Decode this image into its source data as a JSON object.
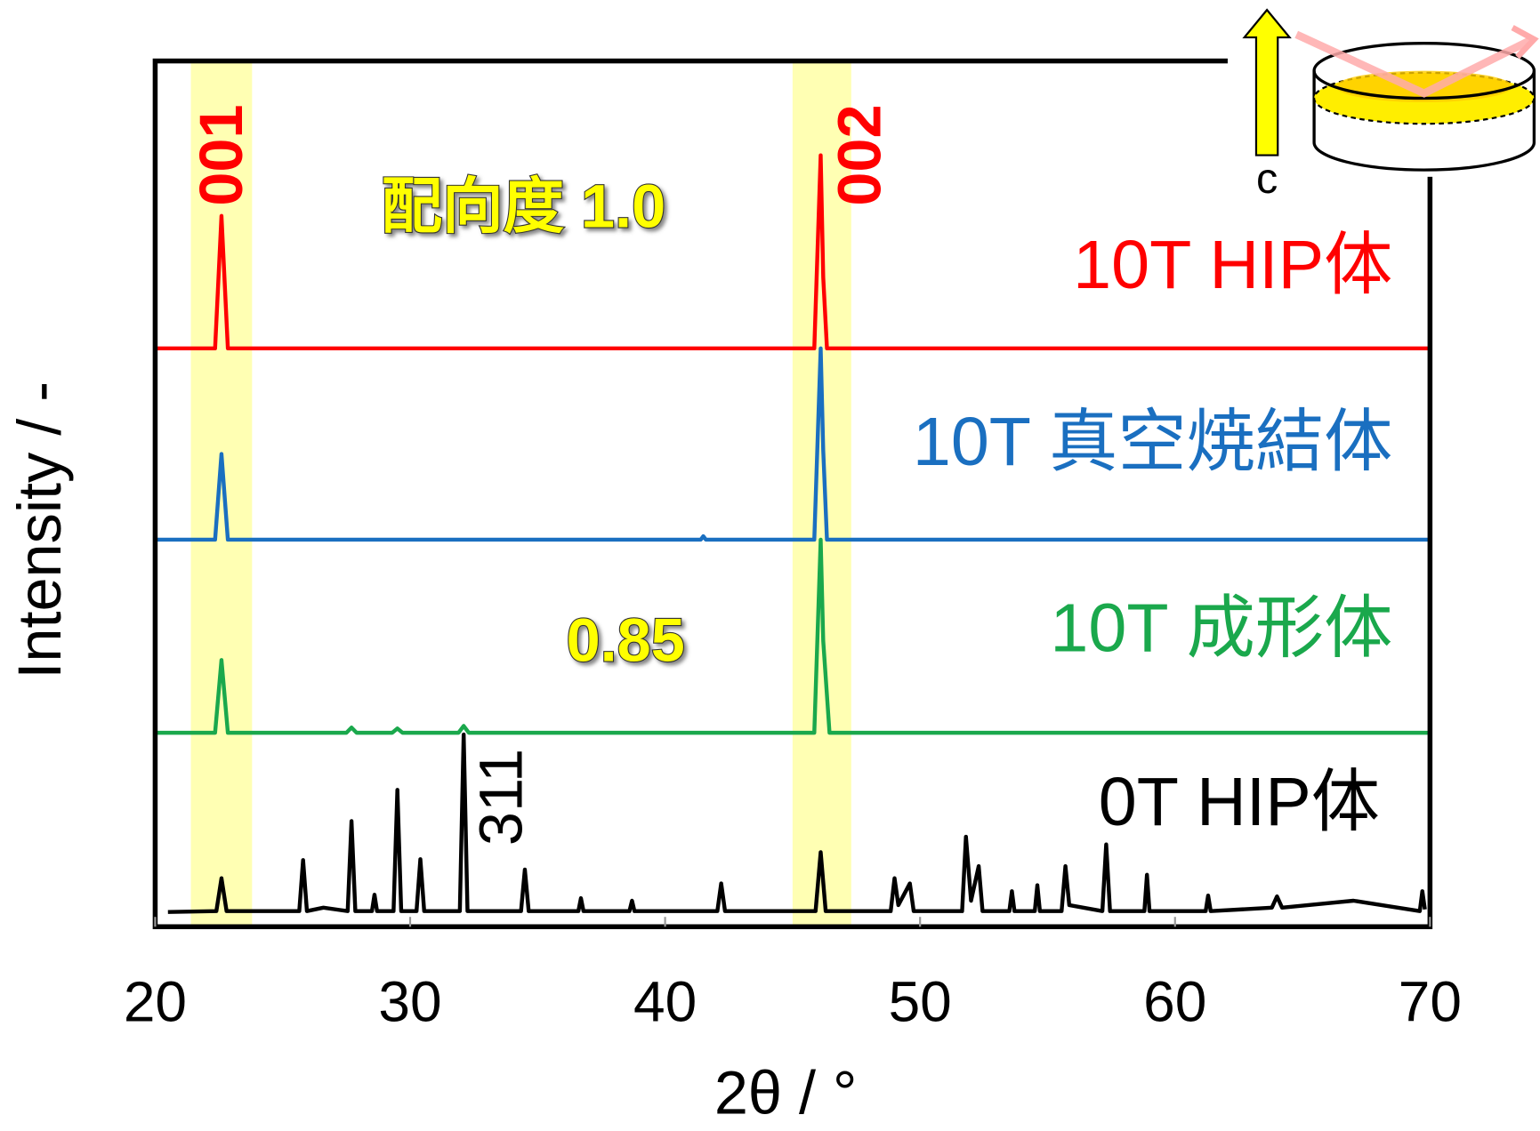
{
  "chart_data": {
    "type": "line",
    "xlabel": "2θ / °",
    "ylabel": "Intensity / -",
    "xlim": [
      20,
      70
    ],
    "xticks": [
      20,
      30,
      40,
      50,
      60,
      70
    ],
    "ylim": [
      0,
      100
    ],
    "highlight_color": "#ffff99",
    "highlight_ranges": [
      [
        21.4,
        23.8
      ],
      [
        45.0,
        47.3
      ]
    ],
    "peak_labels": [
      "001",
      "002",
      "311"
    ],
    "orientation_labels": [
      "配向度 1.0",
      "0.85"
    ],
    "inset_label": "c",
    "series": [
      {
        "name": "10T HIP体",
        "color": "#ff0000",
        "x": [
          20,
          22.35,
          22.6,
          22.85,
          45.85,
          46.1,
          46.2,
          46.35,
          70
        ],
        "values": [
          66.8,
          66.8,
          82.1,
          66.8,
          66.8,
          89.1,
          75,
          66.8,
          66.8
        ]
      },
      {
        "name": "10T 真空焼結体",
        "color": "#1a6fc0",
        "x": [
          20,
          22.35,
          22.6,
          22.85,
          41.4,
          41.5,
          41.6,
          45.85,
          46.1,
          46.2,
          46.35,
          70
        ],
        "values": [
          44.7,
          44.7,
          54.6,
          44.7,
          44.7,
          45.1,
          44.7,
          44.7,
          66.8,
          55,
          44.7,
          44.7
        ]
      },
      {
        "name": "10T 成形体",
        "color": "#1aa84c",
        "x": [
          20,
          22.35,
          22.6,
          22.85,
          27.5,
          27.7,
          27.9,
          29.3,
          29.5,
          29.7,
          31.9,
          32.1,
          32.3,
          45.85,
          46.1,
          46.2,
          46.45,
          70
        ],
        "values": [
          22.4,
          22.4,
          30.8,
          22.4,
          22.4,
          23.0,
          22.4,
          22.4,
          22.9,
          22.4,
          22.4,
          23.2,
          22.4,
          22.4,
          44.7,
          33,
          22.4,
          22.4
        ]
      },
      {
        "name": "0T HIP体",
        "color": "#000000",
        "x": [
          20.5,
          22.4,
          22.6,
          22.8,
          25.65,
          25.8,
          25.95,
          26.6,
          27.55,
          27.7,
          27.85,
          28.5,
          28.6,
          28.7,
          29.35,
          29.5,
          29.65,
          30.25,
          30.4,
          30.55,
          31.95,
          32.1,
          32.25,
          34.35,
          34.5,
          34.65,
          36.6,
          36.7,
          36.8,
          38.6,
          38.7,
          38.8,
          42.05,
          42.2,
          42.35,
          45.9,
          46.1,
          46.3,
          48.85,
          49.0,
          49.15,
          49.6,
          49.75,
          51.65,
          51.8,
          52.0,
          52.3,
          52.45,
          53.5,
          53.6,
          53.7,
          54.5,
          54.6,
          54.7,
          55.55,
          55.7,
          55.85,
          57.15,
          57.3,
          57.45,
          58.8,
          58.9,
          59.0,
          61.2,
          61.3,
          61.4,
          63.8,
          64.0,
          64.2,
          67.0,
          69.6,
          69.7,
          69.8
        ],
        "values": [
          1.7,
          1.8,
          5.6,
          1.8,
          1.8,
          7.7,
          1.8,
          2.2,
          1.8,
          12.2,
          1.8,
          1.8,
          3.7,
          1.8,
          1.8,
          15.8,
          1.8,
          1.8,
          7.8,
          1.8,
          1.8,
          22.2,
          1.8,
          1.8,
          6.6,
          1.8,
          1.8,
          3.3,
          1.8,
          1.8,
          3.0,
          1.8,
          1.8,
          5.0,
          1.8,
          1.8,
          8.6,
          1.8,
          1.8,
          5.6,
          2.5,
          5.0,
          1.8,
          1.8,
          10.4,
          3,
          7.0,
          1.8,
          1.8,
          4.1,
          1.8,
          1.8,
          4.8,
          1.8,
          1.8,
          7.0,
          2.5,
          1.8,
          9.5,
          1.8,
          1.8,
          6.0,
          1.8,
          1.8,
          3.6,
          1.8,
          2.2,
          3.5,
          2.2,
          3.0,
          1.8,
          4.1,
          2.0
        ]
      }
    ]
  }
}
